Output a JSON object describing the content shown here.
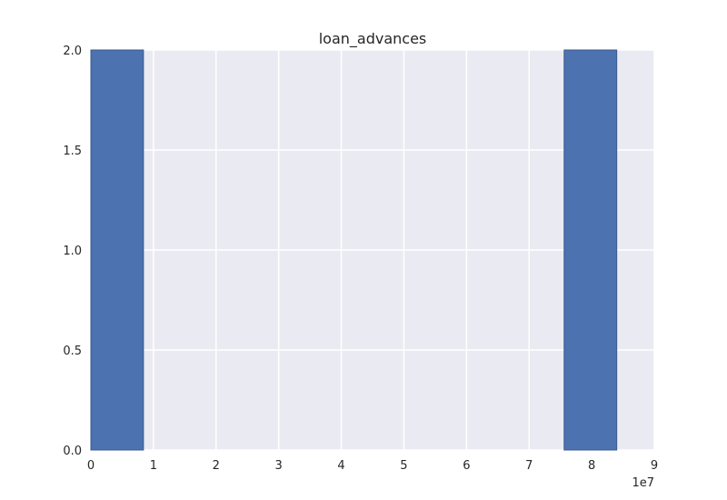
{
  "chart_data": {
    "type": "bar",
    "title": "loan_advances",
    "xlabel": "",
    "ylabel": "",
    "x_offset_label": "1e7",
    "xlim": [
      0,
      9
    ],
    "ylim": [
      0,
      2.0
    ],
    "x_ticks": [
      0,
      1,
      2,
      3,
      4,
      5,
      6,
      7,
      8,
      9
    ],
    "x_tick_labels": [
      "0",
      "1",
      "2",
      "3",
      "4",
      "5",
      "6",
      "7",
      "8",
      "9"
    ],
    "y_ticks": [
      0,
      0.5,
      1.0,
      1.5,
      2.0
    ],
    "y_tick_labels": [
      "0.0",
      "0.5",
      "1.0",
      "1.5",
      "2.0"
    ],
    "grid": true,
    "bars": [
      {
        "x_start": 0.0,
        "x_end": 0.84,
        "value": 2
      },
      {
        "x_start": 0.84,
        "x_end": 1.68,
        "value": 0
      },
      {
        "x_start": 1.68,
        "x_end": 2.52,
        "value": 0
      },
      {
        "x_start": 2.52,
        "x_end": 3.36,
        "value": 0
      },
      {
        "x_start": 3.36,
        "x_end": 4.2,
        "value": 0
      },
      {
        "x_start": 4.2,
        "x_end": 5.04,
        "value": 0
      },
      {
        "x_start": 5.04,
        "x_end": 5.88,
        "value": 0
      },
      {
        "x_start": 5.88,
        "x_end": 6.72,
        "value": 0
      },
      {
        "x_start": 6.72,
        "x_end": 7.56,
        "value": 0
      },
      {
        "x_start": 7.56,
        "x_end": 8.4,
        "value": 2
      }
    ],
    "colors": {
      "bar_fill": "#4c72b0",
      "bar_edge": "#3a5a8c",
      "plot_background": "#eaeaf2",
      "grid": "#ffffff",
      "text": "#262626"
    }
  }
}
